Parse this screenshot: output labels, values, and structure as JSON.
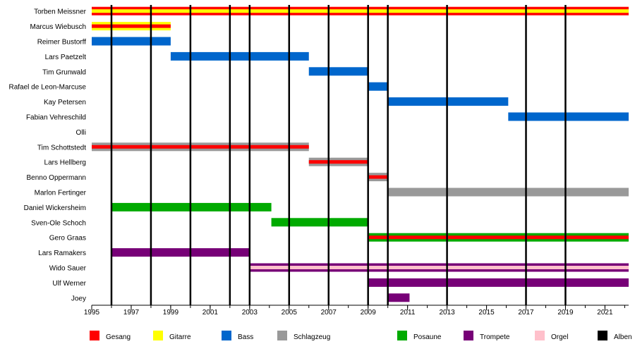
{
  "chart_data": {
    "type": "timeline",
    "title": "",
    "xlim": [
      1995,
      2022.2
    ],
    "x_ticks": [
      "1995",
      "1997",
      "1999",
      "2001",
      "2003",
      "2005",
      "2007",
      "2009",
      "2011",
      "2013",
      "2015",
      "2017",
      "2019",
      "2021"
    ],
    "album_years": [
      1996,
      1998,
      2000,
      2002,
      2003,
      2005,
      2007,
      2009,
      2010,
      2013,
      2017,
      2019
    ],
    "colors": {
      "Gesang": "#ff0000",
      "Gitarre": "#ffff00",
      "Bass": "#0066cc",
      "Schlagzeug": "#999999",
      "Posaune": "#00aa00",
      "Trompete": "#770077",
      "Orgel": "#ffc0cb",
      "Alben": "#000000"
    },
    "members": [
      {
        "name": "Torben Meissner",
        "start": 1995,
        "end": 2022.2,
        "roles": [
          "Gesang",
          "Gitarre"
        ]
      },
      {
        "name": "Marcus Wiebusch",
        "start": 1995,
        "end": 1999,
        "roles": [
          "Gitarre",
          "Gesang"
        ]
      },
      {
        "name": "Reimer Bustorff",
        "start": 1995,
        "end": 1999,
        "roles": [
          "Bass"
        ]
      },
      {
        "name": "Lars Paetzelt",
        "start": 1999,
        "end": 2006,
        "roles": [
          "Bass"
        ]
      },
      {
        "name": "Tim Grunwald",
        "start": 2006,
        "end": 2009,
        "roles": [
          "Bass"
        ]
      },
      {
        "name": "Rafael de Leon-Marcuse",
        "start": 2009,
        "end": 2010,
        "roles": [
          "Bass"
        ]
      },
      {
        "name": "Kay Petersen",
        "start": 2010,
        "end": 2016.1,
        "roles": [
          "Bass"
        ]
      },
      {
        "name": "Fabian Vehreschild",
        "start": 2016.1,
        "end": 2022.2,
        "roles": [
          "Bass"
        ]
      },
      {
        "name": "Olli",
        "start": null,
        "end": null,
        "roles": []
      },
      {
        "name": "Tim Schottstedt",
        "start": 1995,
        "end": 2006,
        "roles": [
          "Schlagzeug",
          "Gesang"
        ]
      },
      {
        "name": "Lars Hellberg",
        "start": 2006,
        "end": 2009,
        "roles": [
          "Schlagzeug",
          "Gesang"
        ]
      },
      {
        "name": "Benno Oppermann",
        "start": 2009,
        "end": 2010,
        "roles": [
          "Schlagzeug",
          "Gesang"
        ]
      },
      {
        "name": "Marlon Fertinger",
        "start": 2010,
        "end": 2022.2,
        "roles": [
          "Schlagzeug"
        ]
      },
      {
        "name": "Daniel Wickersheim",
        "start": 1996,
        "end": 2004.1,
        "roles": [
          "Posaune"
        ]
      },
      {
        "name": "Sven-Ole Schoch",
        "start": 2004.1,
        "end": 2009,
        "roles": [
          "Posaune"
        ]
      },
      {
        "name": "Gero Graas",
        "start": 2009,
        "end": 2022.2,
        "roles": [
          "Posaune",
          "Gesang"
        ]
      },
      {
        "name": "Lars Ramakers",
        "start": 1996,
        "end": 2003,
        "roles": [
          "Trompete"
        ]
      },
      {
        "name": "Wido Sauer",
        "start": 2003,
        "end": 2022.2,
        "roles": [
          "Trompete",
          "Orgel"
        ]
      },
      {
        "name": "Ulf Werner",
        "start": 2009,
        "end": 2022.2,
        "roles": [
          "Trompete"
        ]
      },
      {
        "name": "Joey",
        "start": 2010,
        "end": 2011.1,
        "roles": [
          "Trompete"
        ]
      }
    ],
    "legend": [
      {
        "name": "Gesang",
        "color": "#ff0000"
      },
      {
        "name": "Gitarre",
        "color": "#ffff00"
      },
      {
        "name": "Bass",
        "color": "#0066cc"
      },
      {
        "name": "Schlagzeug",
        "color": "#999999"
      },
      {
        "name": "Posaune",
        "color": "#00aa00"
      },
      {
        "name": "Trompete",
        "color": "#770077"
      },
      {
        "name": "Orgel",
        "color": "#ffc0cb"
      },
      {
        "name": "Alben",
        "color": "#000000"
      }
    ],
    "legend_placement": "bottom",
    "grid": false
  }
}
